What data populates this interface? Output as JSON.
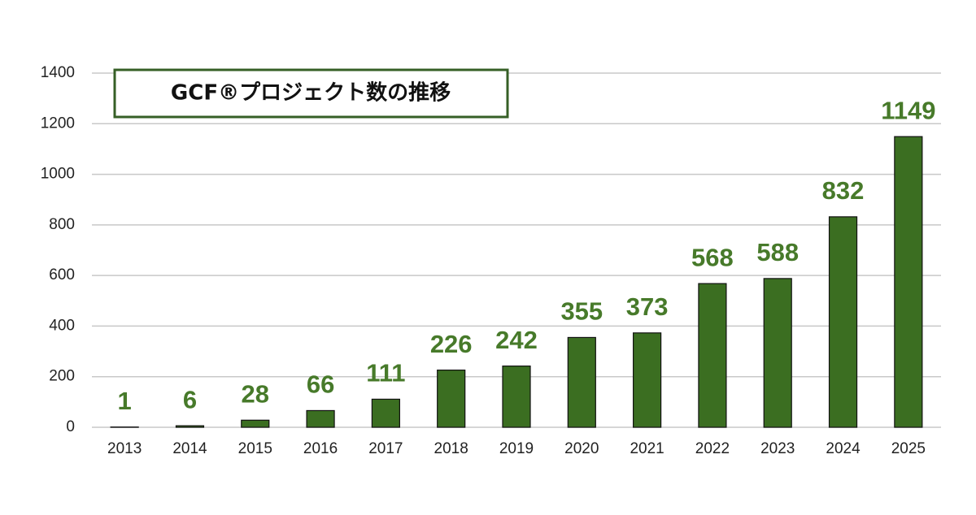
{
  "chart_data": {
    "type": "bar",
    "title": "GCF®プロジェクト数の推移",
    "categories": [
      "2013",
      "2014",
      "2015",
      "2016",
      "2017",
      "2018",
      "2019",
      "2020",
      "2021",
      "2022",
      "2023",
      "2024",
      "2025"
    ],
    "values": [
      1,
      6,
      28,
      66,
      111,
      226,
      242,
      355,
      373,
      568,
      588,
      832,
      1149
    ],
    "color": "#3b6e21",
    "ylim": [
      0,
      1400
    ],
    "yticks": [
      0,
      200,
      400,
      600,
      800,
      1000,
      1200,
      1400
    ],
    "grid": true
  }
}
